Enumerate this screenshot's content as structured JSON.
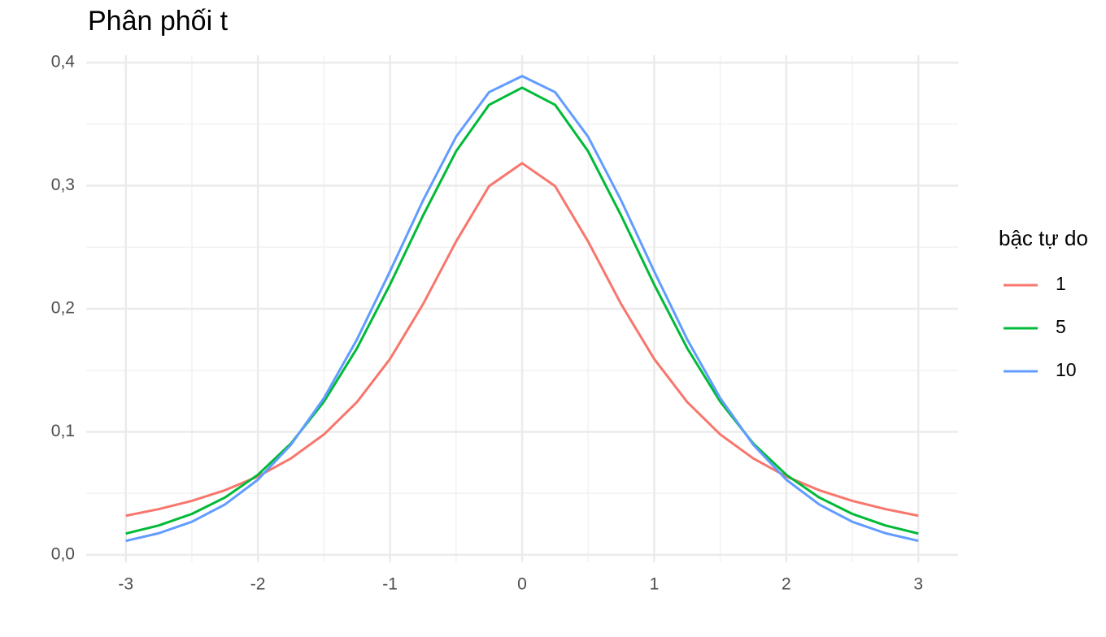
{
  "chart_data": {
    "type": "line",
    "title": "Phân phối t",
    "legend_title": "bậc tự do",
    "x": [
      -3,
      -2.75,
      -2.5,
      -2.25,
      -2,
      -1.75,
      -1.5,
      -1.25,
      -1,
      -0.75,
      -0.5,
      -0.25,
      0,
      0.25,
      0.5,
      0.75,
      1,
      1.25,
      1.5,
      1.75,
      2,
      2.25,
      2.5,
      2.75,
      3
    ],
    "series": [
      {
        "name": "1",
        "color": "#F8766D",
        "values": [
          0.0318,
          0.0372,
          0.0439,
          0.0525,
          0.0637,
          0.0784,
          0.0979,
          0.1242,
          0.1592,
          0.2037,
          0.2546,
          0.2996,
          0.3183,
          0.2996,
          0.2546,
          0.2037,
          0.1592,
          0.1242,
          0.0979,
          0.0784,
          0.0637,
          0.0525,
          0.0439,
          0.0372,
          0.0318
        ]
      },
      {
        "name": "5",
        "color": "#00BA38",
        "values": [
          0.0173,
          0.0239,
          0.0333,
          0.0466,
          0.0651,
          0.0905,
          0.1245,
          0.1679,
          0.2197,
          0.2757,
          0.3279,
          0.3657,
          0.3796,
          0.3657,
          0.3279,
          0.2757,
          0.2197,
          0.1679,
          0.1245,
          0.0905,
          0.0651,
          0.0466,
          0.0333,
          0.0239,
          0.0173
        ]
      },
      {
        "name": "10",
        "color": "#619CFF",
        "values": [
          0.0114,
          0.0176,
          0.0269,
          0.0409,
          0.0611,
          0.0895,
          0.1274,
          0.1751,
          0.2304,
          0.288,
          0.3397,
          0.376,
          0.3891,
          0.376,
          0.3397,
          0.288,
          0.2304,
          0.1751,
          0.1274,
          0.0895,
          0.0611,
          0.0409,
          0.0269,
          0.0176,
          0.0114
        ]
      }
    ],
    "xlim": [
      -3.3,
      3.3
    ],
    "ylim": [
      -0.006,
      0.406
    ],
    "xticks": [
      -3,
      -2,
      -1,
      0,
      1,
      2,
      3
    ],
    "yticks": [
      {
        "value": 0,
        "label": "0,0"
      },
      {
        "value": 0.1,
        "label": "0,1"
      },
      {
        "value": 0.2,
        "label": "0,2"
      },
      {
        "value": 0.3,
        "label": "0,3"
      },
      {
        "value": 0.4,
        "label": "0,4"
      }
    ],
    "x_minor_grid": [
      -2.5,
      -1.5,
      -0.5,
      0.5,
      1.5,
      2.5
    ],
    "y_minor_grid": [
      0.05,
      0.15,
      0.25,
      0.35
    ],
    "grid": true,
    "legend": "right"
  }
}
